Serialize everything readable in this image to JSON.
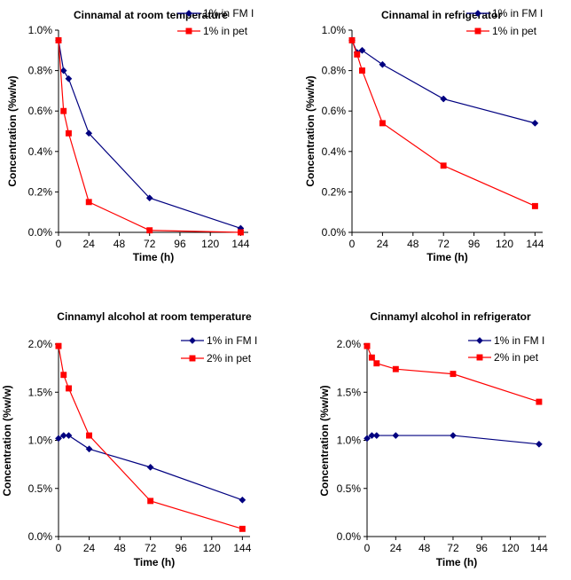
{
  "chart_data": [
    {
      "type": "line",
      "title": "Cinnamal at room temperature",
      "xlabel": "Time (h)",
      "ylabel": "Concentration (%w/w)",
      "xlim": [
        0,
        150
      ],
      "xticks": [
        0,
        24,
        48,
        72,
        96,
        120,
        144
      ],
      "ylim": [
        0,
        1.0
      ],
      "yticks": [
        0,
        0.2,
        0.4,
        0.6,
        0.8,
        1.0
      ],
      "ytick_labels": [
        "0.0%",
        "0.2%",
        "0.4%",
        "0.6%",
        "0.8%",
        "1.0%"
      ],
      "legend_position": "top-right",
      "series": [
        {
          "name": "1% in FM I",
          "color": "#000080",
          "marker": "diamond",
          "x": [
            0,
            4,
            8,
            24,
            72,
            144
          ],
          "y": [
            0.95,
            0.8,
            0.76,
            0.49,
            0.17,
            0.02
          ]
        },
        {
          "name": "1% in pet",
          "color": "#ff0000",
          "marker": "square",
          "x": [
            0,
            4,
            8,
            24,
            72,
            144
          ],
          "y": [
            0.95,
            0.6,
            0.49,
            0.15,
            0.01,
            0.0
          ]
        }
      ]
    },
    {
      "type": "line",
      "title": "Cinnamal in refrigerator",
      "xlabel": "Time (h)",
      "ylabel": "Concentration (%w/w)",
      "xlim": [
        0,
        150
      ],
      "xticks": [
        0,
        24,
        48,
        72,
        96,
        120,
        144
      ],
      "ylim": [
        0,
        1.0
      ],
      "yticks": [
        0,
        0.2,
        0.4,
        0.6,
        0.8,
        1.0
      ],
      "ytick_labels": [
        "0.0%",
        "0.2%",
        "0.4%",
        "0.6%",
        "0.8%",
        "1.0%"
      ],
      "legend_position": "top-right",
      "series": [
        {
          "name": "1% in FM I",
          "color": "#000080",
          "marker": "diamond",
          "x": [
            0,
            4,
            8,
            24,
            72,
            144
          ],
          "y": [
            0.95,
            0.89,
            0.9,
            0.83,
            0.66,
            0.54
          ]
        },
        {
          "name": "1% in pet",
          "color": "#ff0000",
          "marker": "square",
          "x": [
            0,
            4,
            8,
            24,
            72,
            144
          ],
          "y": [
            0.95,
            0.88,
            0.8,
            0.54,
            0.33,
            0.13
          ]
        }
      ]
    },
    {
      "type": "line",
      "title": "Cinnamyl alcohol at room temperature",
      "xlabel": "Time (h)",
      "ylabel": "Concentration (%w/w)",
      "xlim": [
        0,
        150
      ],
      "xticks": [
        0,
        24,
        48,
        72,
        96,
        120,
        144
      ],
      "ylim": [
        0,
        2.0
      ],
      "yticks": [
        0,
        0.5,
        1.0,
        1.5,
        2.0
      ],
      "ytick_labels": [
        "0.0%",
        "0.5%",
        "1.0%",
        "1.5%",
        "2.0%"
      ],
      "legend_position": "top-right",
      "series": [
        {
          "name": "1% in FM I",
          "color": "#000080",
          "marker": "diamond",
          "x": [
            0,
            4,
            8,
            24,
            72,
            144
          ],
          "y": [
            1.02,
            1.05,
            1.05,
            0.91,
            0.72,
            0.38
          ]
        },
        {
          "name": "2% in pet",
          "color": "#ff0000",
          "marker": "square",
          "x": [
            0,
            4,
            8,
            24,
            72,
            144
          ],
          "y": [
            1.98,
            1.68,
            1.54,
            1.05,
            0.37,
            0.08
          ]
        }
      ]
    },
    {
      "type": "line",
      "title": "Cinnamyl alcohol in refrigerator",
      "xlabel": "Time (h)",
      "ylabel": "Concentration (%w/w)",
      "xlim": [
        0,
        150
      ],
      "xticks": [
        0,
        24,
        48,
        72,
        96,
        120,
        144
      ],
      "ylim": [
        0,
        2.0
      ],
      "yticks": [
        0,
        0.5,
        1.0,
        1.5,
        2.0
      ],
      "ytick_labels": [
        "0.0%",
        "0.5%",
        "1.0%",
        "1.5%",
        "2.0%"
      ],
      "legend_position": "top-right",
      "series": [
        {
          "name": "1% in FM I",
          "color": "#000080",
          "marker": "diamond",
          "x": [
            0,
            4,
            8,
            24,
            72,
            144
          ],
          "y": [
            1.02,
            1.05,
            1.05,
            1.05,
            1.05,
            0.96
          ]
        },
        {
          "name": "2% in pet",
          "color": "#ff0000",
          "marker": "square",
          "x": [
            0,
            4,
            8,
            24,
            72,
            144
          ],
          "y": [
            1.98,
            1.86,
            1.8,
            1.74,
            1.69,
            1.4
          ]
        }
      ]
    }
  ]
}
